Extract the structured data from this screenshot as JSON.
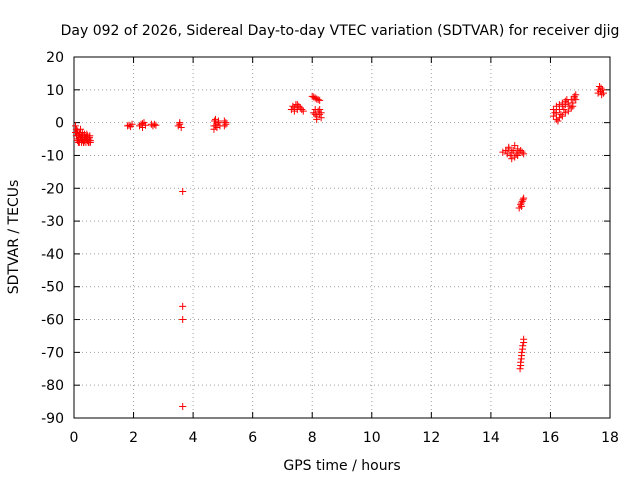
{
  "chart_data": {
    "type": "scatter",
    "title": "Day 092 of 2026, Sidereal Day-to-day VTEC variation (SDTVAR) for receiver djig",
    "xlabel": "GPS time / hours",
    "ylabel": "SDTVAR / TECUs",
    "xlim": [
      0,
      18
    ],
    "ylim": [
      -90,
      20
    ],
    "xticks": [
      0,
      2,
      4,
      6,
      8,
      10,
      12,
      14,
      16,
      18
    ],
    "yticks": [
      20,
      10,
      0,
      -10,
      -20,
      -30,
      -40,
      -50,
      -60,
      -70,
      -80,
      -90
    ],
    "grid": true,
    "marker": "+",
    "color": "#ff0000",
    "series": [
      {
        "name": "SDTVAR",
        "points": [
          [
            0.05,
            -1
          ],
          [
            0.08,
            -2
          ],
          [
            0.1,
            -3
          ],
          [
            0.12,
            -2.5
          ],
          [
            0.15,
            -4
          ],
          [
            0.18,
            -3.5
          ],
          [
            0.2,
            -5
          ],
          [
            0.22,
            -4.5
          ],
          [
            0.25,
            -6
          ],
          [
            0.28,
            -5
          ],
          [
            0.3,
            -4
          ],
          [
            0.32,
            -6
          ],
          [
            0.35,
            -5.5
          ],
          [
            0.38,
            -4.5
          ],
          [
            0.4,
            -6
          ],
          [
            0.42,
            -5
          ],
          [
            0.45,
            -4
          ],
          [
            0.48,
            -6
          ],
          [
            0.5,
            -5
          ],
          [
            0.52,
            -4.5
          ],
          [
            0.55,
            -5.5
          ],
          [
            0.1,
            -5
          ],
          [
            0.15,
            -6
          ],
          [
            0.2,
            -3
          ],
          [
            0.25,
            -4
          ],
          [
            0.3,
            -5.5
          ],
          [
            0.35,
            -3.5
          ],
          [
            0.4,
            -4.5
          ],
          [
            0.45,
            -5.5
          ],
          [
            0.5,
            -6
          ],
          [
            0.05,
            -3
          ],
          [
            0.08,
            -4
          ],
          [
            0.12,
            -5.5
          ],
          [
            0.18,
            -6
          ],
          [
            0.22,
            -2
          ],
          [
            0.28,
            -3
          ],
          [
            0.33,
            -6
          ],
          [
            0.43,
            -3.5
          ],
          [
            0.53,
            -4
          ],
          [
            0.55,
            -6
          ],
          [
            1.8,
            -1
          ],
          [
            1.85,
            -0.8
          ],
          [
            1.9,
            -1.2
          ],
          [
            1.95,
            -0.5
          ],
          [
            2.2,
            -1
          ],
          [
            2.25,
            -0.5
          ],
          [
            2.3,
            -1.5
          ],
          [
            2.35,
            0
          ],
          [
            2.4,
            -0.8
          ],
          [
            2.3,
            -0.3
          ],
          [
            2.6,
            -0.5
          ],
          [
            2.65,
            -1
          ],
          [
            2.7,
            -0.5
          ],
          [
            2.75,
            -0.8
          ],
          [
            3.5,
            -1
          ],
          [
            3.55,
            0
          ],
          [
            3.6,
            -1.5
          ],
          [
            3.55,
            -0.5
          ],
          [
            3.65,
            -21
          ],
          [
            3.65,
            -56
          ],
          [
            3.65,
            -60
          ],
          [
            3.65,
            -86.5
          ],
          [
            4.7,
            -2
          ],
          [
            4.75,
            -1
          ],
          [
            4.8,
            -0.5
          ],
          [
            4.85,
            0
          ],
          [
            4.75,
            1
          ],
          [
            4.8,
            -1.5
          ],
          [
            4.72,
            0.5
          ],
          [
            4.9,
            -1
          ],
          [
            4.85,
            0.5
          ],
          [
            4.7,
            -1
          ],
          [
            5.05,
            -1
          ],
          [
            5.1,
            0
          ],
          [
            5.05,
            0.5
          ],
          [
            5.1,
            -0.5
          ],
          [
            7.3,
            4
          ],
          [
            7.35,
            5
          ],
          [
            7.4,
            4.5
          ],
          [
            7.45,
            5.5
          ],
          [
            7.5,
            4
          ],
          [
            7.55,
            5
          ],
          [
            7.6,
            4.5
          ],
          [
            7.65,
            4
          ],
          [
            7.7,
            3.5
          ],
          [
            7.4,
            3.5
          ],
          [
            7.5,
            5.5
          ],
          [
            8.0,
            8
          ],
          [
            8.05,
            7.8
          ],
          [
            8.1,
            7.5
          ],
          [
            8.15,
            7.2
          ],
          [
            8.2,
            7
          ],
          [
            8.25,
            6.8
          ],
          [
            8.05,
            3
          ],
          [
            8.1,
            4
          ],
          [
            8.15,
            2
          ],
          [
            8.2,
            3.5
          ],
          [
            8.25,
            2.5
          ],
          [
            8.3,
            3
          ],
          [
            8.3,
            1.5
          ],
          [
            8.15,
            1
          ],
          [
            8.1,
            2.5
          ],
          [
            8.25,
            4
          ],
          [
            14.4,
            -9
          ],
          [
            14.5,
            -8.5
          ],
          [
            14.55,
            -9.5
          ],
          [
            14.6,
            -8
          ],
          [
            14.65,
            -10
          ],
          [
            14.7,
            -9
          ],
          [
            14.75,
            -8.5
          ],
          [
            14.8,
            -10.5
          ],
          [
            14.85,
            -9.5
          ],
          [
            14.9,
            -8
          ],
          [
            14.95,
            -9
          ],
          [
            15.0,
            -8.5
          ],
          [
            15.05,
            -9
          ],
          [
            15.1,
            -9.5
          ],
          [
            14.7,
            -11
          ],
          [
            14.6,
            -7.5
          ],
          [
            14.8,
            -7
          ],
          [
            14.9,
            -10
          ],
          [
            14.95,
            -26
          ],
          [
            15.0,
            -25
          ],
          [
            15.02,
            -24.5
          ],
          [
            15.05,
            -24
          ],
          [
            15.08,
            -23.5
          ],
          [
            15.1,
            -23
          ],
          [
            15.03,
            -25.5
          ],
          [
            14.98,
            -75
          ],
          [
            15.0,
            -74
          ],
          [
            15.0,
            -73
          ],
          [
            15.02,
            -72
          ],
          [
            15.03,
            -71
          ],
          [
            15.04,
            -70
          ],
          [
            15.06,
            -69
          ],
          [
            15.07,
            -68
          ],
          [
            15.1,
            -67
          ],
          [
            15.1,
            -66
          ],
          [
            16.1,
            2
          ],
          [
            16.2,
            3
          ],
          [
            16.3,
            4
          ],
          [
            16.4,
            5
          ],
          [
            16.5,
            5.5
          ],
          [
            16.6,
            6
          ],
          [
            16.7,
            7
          ],
          [
            16.8,
            8
          ],
          [
            16.85,
            8.5
          ],
          [
            16.8,
            7.5
          ],
          [
            16.1,
            4
          ],
          [
            16.2,
            5
          ],
          [
            16.3,
            5.5
          ],
          [
            16.4,
            6
          ],
          [
            16.5,
            6.5
          ],
          [
            16.55,
            7
          ],
          [
            16.2,
            1
          ],
          [
            16.3,
            1.5
          ],
          [
            16.4,
            2
          ],
          [
            16.5,
            3
          ],
          [
            16.6,
            3.5
          ],
          [
            16.7,
            4.5
          ],
          [
            16.75,
            5
          ],
          [
            16.15,
            3
          ],
          [
            16.25,
            0.5
          ],
          [
            16.35,
            2.5
          ],
          [
            16.45,
            4
          ],
          [
            16.65,
            5
          ],
          [
            16.75,
            6
          ],
          [
            16.85,
            7
          ],
          [
            17.6,
            9
          ],
          [
            17.62,
            10
          ],
          [
            17.65,
            11
          ],
          [
            17.68,
            9.5
          ],
          [
            17.7,
            10.5
          ],
          [
            17.72,
            8.5
          ],
          [
            17.75,
            10
          ],
          [
            17.78,
            9
          ]
        ]
      }
    ]
  }
}
